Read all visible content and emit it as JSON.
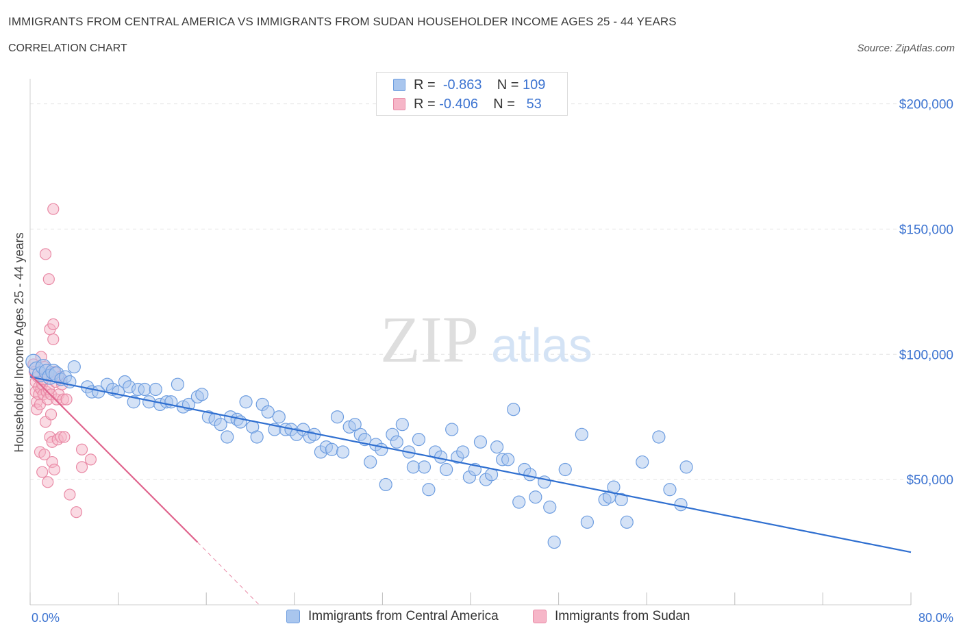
{
  "header": {
    "title": "IMMIGRANTS FROM CENTRAL AMERICA VS IMMIGRANTS FROM SUDAN HOUSEHOLDER INCOME AGES 25 - 44 YEARS",
    "subtitle": "CORRELATION CHART",
    "source": "Source: ZipAtlas.com"
  },
  "watermark": {
    "zip": "ZIP",
    "atlas": "atlas"
  },
  "legend": {
    "series1": {
      "r_label": "R =",
      "r_value": "-0.863",
      "n_label": "N =",
      "n_value": "109"
    },
    "series2": {
      "r_label": "R =",
      "r_value": "-0.406",
      "n_label": "N =",
      "n_value": "53"
    }
  },
  "colors": {
    "blue_fill": "#a9c6ee",
    "blue_stroke": "#6d9de0",
    "blue_line": "#2f6fd0",
    "pink_fill": "#f6b6c8",
    "pink_stroke": "#e98aa6",
    "pink_line": "#e0668f",
    "axis_text": "#3d74d1",
    "grid": "#e3e3e3"
  },
  "chart_data": {
    "type": "scatter",
    "title": "IMMIGRANTS FROM CENTRAL AMERICA VS IMMIGRANTS FROM SUDAN HOUSEHOLDER INCOME AGES 25 - 44 YEARS",
    "xlabel": "",
    "ylabel": "Householder Income Ages 25 - 44 years",
    "xlim": [
      0,
      80
    ],
    "ylim": [
      0,
      210000
    ],
    "x_tick_labels": [
      "0.0%",
      "80.0%"
    ],
    "y_ticks": [
      50000,
      100000,
      150000,
      200000
    ],
    "y_tick_labels": [
      "$50,000",
      "$100,000",
      "$150,000",
      "$200,000"
    ],
    "grid": true,
    "legend_position": "top-center",
    "series": [
      {
        "name": "Immigrants from Central America",
        "color": "#a9c6ee",
        "trendline": {
          "x": [
            0,
            80
          ],
          "y": [
            91000,
            21000
          ]
        },
        "points": [
          [
            0.3,
            97000
          ],
          [
            0.6,
            94000
          ],
          [
            0.9,
            92000
          ],
          [
            1.2,
            95000
          ],
          [
            1.5,
            93000
          ],
          [
            1.8,
            91000
          ],
          [
            2.1,
            93000
          ],
          [
            2.4,
            92000
          ],
          [
            2.8,
            90000
          ],
          [
            3.2,
            91000
          ],
          [
            3.6,
            89000
          ],
          [
            4.0,
            95000
          ],
          [
            5.2,
            87000
          ],
          [
            5.6,
            85000
          ],
          [
            6.2,
            85000
          ],
          [
            7.0,
            88000
          ],
          [
            7.5,
            86000
          ],
          [
            8.0,
            85000
          ],
          [
            8.6,
            89000
          ],
          [
            9.0,
            87000
          ],
          [
            9.4,
            81000
          ],
          [
            9.8,
            86000
          ],
          [
            10.4,
            86000
          ],
          [
            10.8,
            81000
          ],
          [
            11.4,
            86000
          ],
          [
            11.8,
            80000
          ],
          [
            12.4,
            81000
          ],
          [
            12.8,
            81000
          ],
          [
            13.4,
            88000
          ],
          [
            13.9,
            79000
          ],
          [
            14.4,
            80000
          ],
          [
            15.2,
            83000
          ],
          [
            15.6,
            84000
          ],
          [
            16.2,
            75000
          ],
          [
            16.8,
            74000
          ],
          [
            17.3,
            72000
          ],
          [
            17.9,
            67000
          ],
          [
            18.2,
            75000
          ],
          [
            18.8,
            74000
          ],
          [
            19.1,
            73000
          ],
          [
            19.6,
            81000
          ],
          [
            20.2,
            71000
          ],
          [
            20.6,
            67000
          ],
          [
            21.1,
            80000
          ],
          [
            21.6,
            77000
          ],
          [
            22.2,
            70000
          ],
          [
            22.6,
            75000
          ],
          [
            23.2,
            70000
          ],
          [
            23.7,
            70000
          ],
          [
            24.2,
            68000
          ],
          [
            24.8,
            70000
          ],
          [
            25.4,
            67000
          ],
          [
            25.8,
            68000
          ],
          [
            26.4,
            61000
          ],
          [
            26.9,
            63000
          ],
          [
            27.4,
            62000
          ],
          [
            27.9,
            75000
          ],
          [
            28.4,
            61000
          ],
          [
            29.0,
            71000
          ],
          [
            29.5,
            72000
          ],
          [
            30.0,
            68000
          ],
          [
            30.4,
            66000
          ],
          [
            30.9,
            57000
          ],
          [
            31.4,
            64000
          ],
          [
            31.9,
            62000
          ],
          [
            32.3,
            48000
          ],
          [
            32.9,
            68000
          ],
          [
            33.3,
            65000
          ],
          [
            33.8,
            72000
          ],
          [
            34.4,
            61000
          ],
          [
            34.8,
            55000
          ],
          [
            35.3,
            66000
          ],
          [
            35.8,
            55000
          ],
          [
            36.2,
            46000
          ],
          [
            36.8,
            61000
          ],
          [
            37.3,
            59000
          ],
          [
            37.8,
            54000
          ],
          [
            38.3,
            70000
          ],
          [
            38.8,
            59000
          ],
          [
            39.3,
            61000
          ],
          [
            39.9,
            51000
          ],
          [
            40.4,
            54000
          ],
          [
            40.9,
            65000
          ],
          [
            41.4,
            50000
          ],
          [
            41.9,
            52000
          ],
          [
            42.4,
            63000
          ],
          [
            42.9,
            58000
          ],
          [
            43.4,
            58000
          ],
          [
            43.9,
            78000
          ],
          [
            44.4,
            41000
          ],
          [
            44.9,
            54000
          ],
          [
            45.4,
            52000
          ],
          [
            45.9,
            43000
          ],
          [
            46.7,
            49000
          ],
          [
            47.2,
            39000
          ],
          [
            47.6,
            25000
          ],
          [
            48.6,
            54000
          ],
          [
            50.1,
            68000
          ],
          [
            50.6,
            33000
          ],
          [
            52.2,
            42000
          ],
          [
            52.6,
            43000
          ],
          [
            53.0,
            47000
          ],
          [
            53.7,
            42000
          ],
          [
            54.2,
            33000
          ],
          [
            55.6,
            57000
          ],
          [
            57.1,
            67000
          ],
          [
            58.1,
            46000
          ],
          [
            59.1,
            40000
          ],
          [
            59.6,
            55000
          ]
        ]
      },
      {
        "name": "Immigrants from Sudan",
        "color": "#f6b6c8",
        "trendline": {
          "x": [
            0,
            15.2
          ],
          "y": [
            92000,
            25000
          ]
        },
        "trendline_extension": {
          "x": [
            15.2,
            20.8
          ],
          "y": [
            25000,
            0
          ]
        },
        "points": [
          [
            0.3,
            96000
          ],
          [
            0.4,
            93000
          ],
          [
            0.5,
            89000
          ],
          [
            0.5,
            85000
          ],
          [
            0.6,
            81000
          ],
          [
            0.6,
            78000
          ],
          [
            0.7,
            91000
          ],
          [
            0.8,
            87000
          ],
          [
            0.8,
            84000
          ],
          [
            0.9,
            61000
          ],
          [
            0.9,
            80000
          ],
          [
            1.0,
            86000
          ],
          [
            1.0,
            99000
          ],
          [
            1.1,
            53000
          ],
          [
            1.1,
            88000
          ],
          [
            1.2,
            90000
          ],
          [
            1.2,
            84000
          ],
          [
            1.3,
            95000
          ],
          [
            1.3,
            60000
          ],
          [
            1.4,
            140000
          ],
          [
            1.4,
            73000
          ],
          [
            1.5,
            92000
          ],
          [
            1.5,
            85000
          ],
          [
            1.6,
            82000
          ],
          [
            1.6,
            49000
          ],
          [
            1.7,
            130000
          ],
          [
            1.7,
            86000
          ],
          [
            1.8,
            110000
          ],
          [
            1.8,
            67000
          ],
          [
            1.9,
            76000
          ],
          [
            1.9,
            84000
          ],
          [
            2.0,
            65000
          ],
          [
            2.0,
            57000
          ],
          [
            2.1,
            158000
          ],
          [
            2.1,
            112000
          ],
          [
            2.1,
            106000
          ],
          [
            2.2,
            93000
          ],
          [
            2.2,
            54000
          ],
          [
            2.3,
            89000
          ],
          [
            2.4,
            82000
          ],
          [
            2.5,
            66000
          ],
          [
            2.6,
            84000
          ],
          [
            2.7,
            91000
          ],
          [
            2.8,
            67000
          ],
          [
            2.9,
            88000
          ],
          [
            3.0,
            82000
          ],
          [
            3.1,
            67000
          ],
          [
            3.3,
            82000
          ],
          [
            3.6,
            44000
          ],
          [
            4.2,
            37000
          ],
          [
            4.7,
            62000
          ],
          [
            4.7,
            55000
          ],
          [
            5.5,
            58000
          ]
        ]
      }
    ]
  },
  "axis": {
    "y_label": "Householder Income Ages 25 - 44 years",
    "x_min_label": "0.0%",
    "x_max_label": "80.0%"
  }
}
